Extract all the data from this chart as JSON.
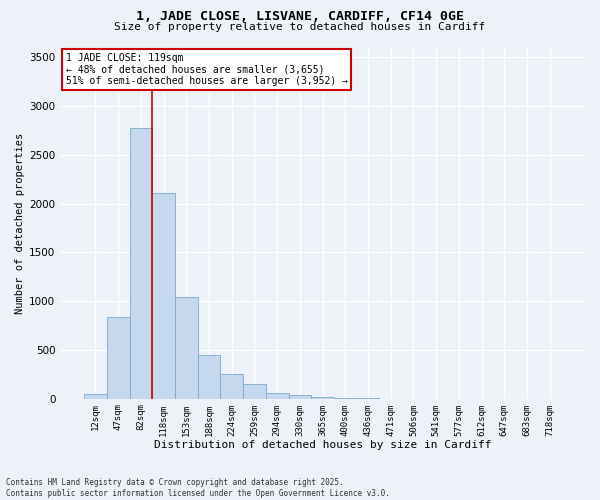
{
  "title_line1": "1, JADE CLOSE, LISVANE, CARDIFF, CF14 0GE",
  "title_line2": "Size of property relative to detached houses in Cardiff",
  "xlabel": "Distribution of detached houses by size in Cardiff",
  "ylabel": "Number of detached properties",
  "categories": [
    "12sqm",
    "47sqm",
    "82sqm",
    "118sqm",
    "153sqm",
    "188sqm",
    "224sqm",
    "259sqm",
    "294sqm",
    "330sqm",
    "365sqm",
    "400sqm",
    "436sqm",
    "471sqm",
    "506sqm",
    "541sqm",
    "577sqm",
    "612sqm",
    "647sqm",
    "683sqm",
    "718sqm"
  ],
  "values": [
    50,
    840,
    2780,
    2110,
    1040,
    450,
    250,
    155,
    60,
    35,
    20,
    10,
    5,
    0,
    0,
    0,
    0,
    0,
    0,
    0,
    0
  ],
  "bar_color": "#c5d8ee",
  "bar_edge_color": "#7aaac8",
  "vline_index": 3,
  "vline_color": "#cc0000",
  "annotation_text": "1 JADE CLOSE: 119sqm\n← 48% of detached houses are smaller (3,655)\n51% of semi-detached houses are larger (3,952) →",
  "annotation_box_color": "#ffffff",
  "annotation_box_edge": "#cc0000",
  "ylim": [
    0,
    3600
  ],
  "yticks": [
    0,
    500,
    1000,
    1500,
    2000,
    2500,
    3000,
    3500
  ],
  "background_color": "#edf2f9",
  "grid_color": "#ffffff",
  "footer_line1": "Contains HM Land Registry data © Crown copyright and database right 2025.",
  "footer_line2": "Contains public sector information licensed under the Open Government Licence v3.0."
}
